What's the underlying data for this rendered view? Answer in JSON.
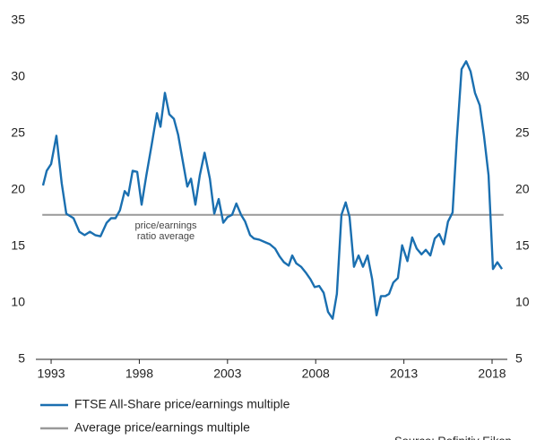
{
  "chart_data": {
    "type": "line",
    "x": [
      1992.54,
      1992.75,
      1993.0,
      1993.3,
      1993.6,
      1993.86,
      1994.27,
      1994.6,
      1994.9,
      1995.2,
      1995.5,
      1995.8,
      1996.15,
      1996.4,
      1996.65,
      1996.9,
      1997.17,
      1997.37,
      1997.62,
      1997.88,
      1998.13,
      1998.4,
      1998.7,
      1999.0,
      1999.2,
      1999.45,
      1999.7,
      1999.96,
      2000.2,
      2000.47,
      2000.72,
      2000.93,
      2001.18,
      2001.43,
      2001.7,
      2002.0,
      2002.25,
      2002.5,
      2002.76,
      2003.0,
      2003.26,
      2003.5,
      2003.77,
      2004.0,
      2004.28,
      2004.5,
      2004.8,
      2005.1,
      2005.4,
      2005.7,
      2005.96,
      2006.2,
      2006.47,
      2006.67,
      2006.9,
      2007.17,
      2007.43,
      2007.7,
      2007.94,
      2008.2,
      2008.45,
      2008.7,
      2008.96,
      2009.2,
      2009.46,
      2009.7,
      2009.92,
      2010.17,
      2010.43,
      2010.68,
      2010.94,
      2011.2,
      2011.45,
      2011.7,
      2011.95,
      2012.16,
      2012.4,
      2012.66,
      2012.9,
      2013.2,
      2013.47,
      2013.73,
      2014.0,
      2014.24,
      2014.5,
      2014.75,
      2015.0,
      2015.26,
      2015.5,
      2015.76,
      2016.0,
      2016.27,
      2016.53,
      2016.78,
      2017.03,
      2017.3,
      2017.54,
      2017.8,
      2018.05,
      2018.3,
      2018.56
    ],
    "series": [
      {
        "name": "FTSE All-Share price/earnings multiple",
        "color": "#1a6fb0",
        "values": [
          20.4,
          21.7,
          22.3,
          24.8,
          20.6,
          17.9,
          17.5,
          16.3,
          16.0,
          16.3,
          16.0,
          15.9,
          17.1,
          17.5,
          17.5,
          18.2,
          19.9,
          19.5,
          21.7,
          21.6,
          18.7,
          21.3,
          24.0,
          26.8,
          25.6,
          28.6,
          26.7,
          26.3,
          24.9,
          22.5,
          20.3,
          21.0,
          18.7,
          21.3,
          23.3,
          21.0,
          17.9,
          19.2,
          17.1,
          17.6,
          17.8,
          18.8,
          17.8,
          17.2,
          16.0,
          15.7,
          15.6,
          15.4,
          15.2,
          14.8,
          14.1,
          13.6,
          13.3,
          14.2,
          13.5,
          13.2,
          12.7,
          12.1,
          11.4,
          11.5,
          10.9,
          9.2,
          8.6,
          10.8,
          17.8,
          18.9,
          17.6,
          13.2,
          14.2,
          13.2,
          14.2,
          12.1,
          8.9,
          10.6,
          10.6,
          10.8,
          11.8,
          12.2,
          15.1,
          13.7,
          15.8,
          14.8,
          14.3,
          14.7,
          14.2,
          15.7,
          16.1,
          15.2,
          17.2,
          18.0,
          24.5,
          30.7,
          31.4,
          30.5,
          28.6,
          27.5,
          24.8,
          21.3,
          13.0,
          13.6,
          13.0
        ]
      }
    ],
    "reference_line": {
      "name": "Average price/earnings multiple",
      "value": 17.8,
      "color": "#999999"
    },
    "annotation": [
      "price/earnings",
      "ratio average"
    ],
    "xlim": [
      1992.5,
      2018.65
    ],
    "xticks": [
      1993,
      1998,
      2003,
      2008,
      2013,
      2018
    ],
    "ylim": [
      5,
      35
    ],
    "yticks": [
      5,
      10,
      15,
      20,
      25,
      30,
      35
    ],
    "y2lim": [
      5,
      35
    ],
    "y2ticks": [
      5,
      10,
      15,
      20,
      25,
      30,
      35
    ],
    "source": "Source: Refinitiv Eikon"
  }
}
